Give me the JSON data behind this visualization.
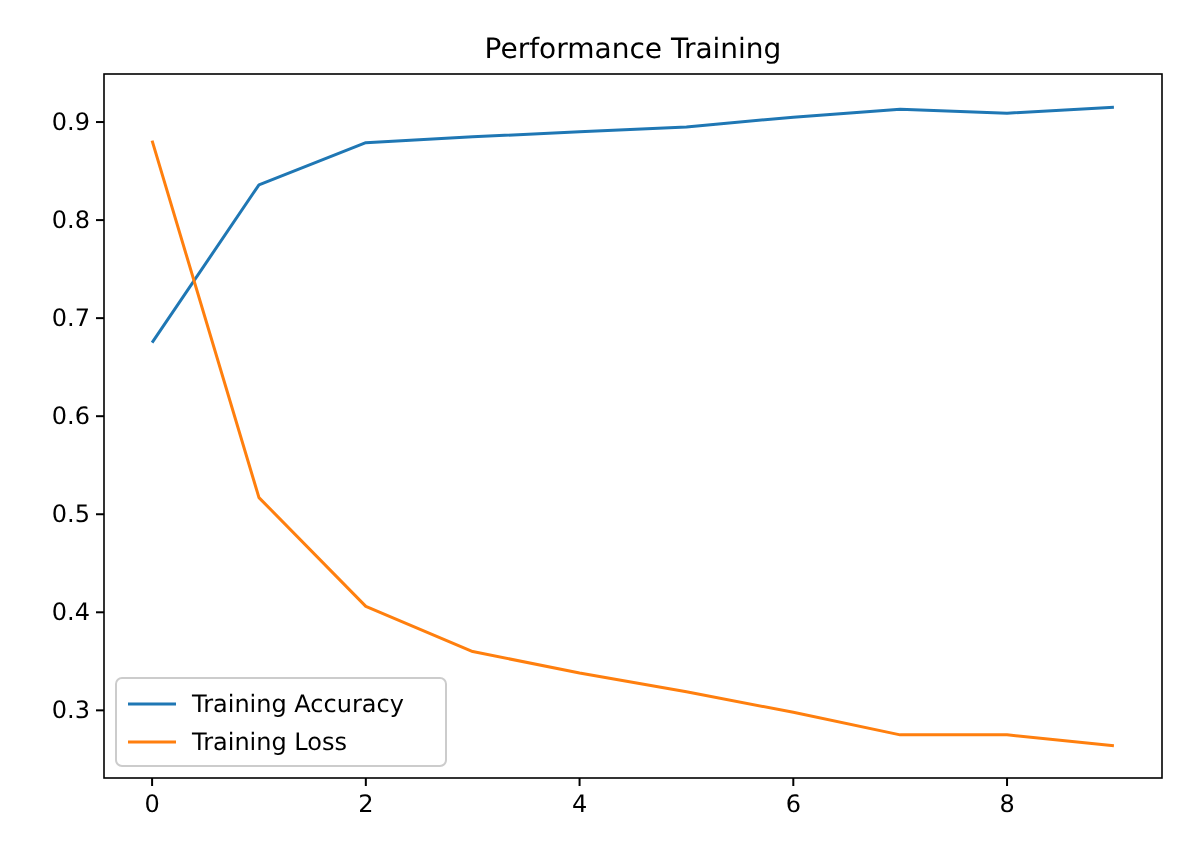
{
  "chart_data": {
    "type": "line",
    "title": "Performance Training",
    "x": [
      0,
      1,
      2,
      3,
      4,
      5,
      6,
      7,
      8,
      9
    ],
    "series": [
      {
        "name": "Training Accuracy",
        "color": "#1f77b4",
        "values": [
          0.675,
          0.836,
          0.879,
          0.885,
          0.89,
          0.895,
          0.905,
          0.913,
          0.909,
          0.915
        ]
      },
      {
        "name": "Training Loss",
        "color": "#ff7f0e",
        "values": [
          0.881,
          0.517,
          0.406,
          0.36,
          0.338,
          0.319,
          0.298,
          0.275,
          0.275,
          0.264
        ]
      }
    ],
    "xlim": [
      -0.45,
      9.45
    ],
    "ylim": [
      0.231,
      0.949
    ],
    "xticks": [
      0,
      2,
      4,
      6,
      8
    ],
    "yticks": [
      0.3,
      0.4,
      0.5,
      0.6,
      0.7,
      0.8,
      0.9
    ],
    "legend": "bottom left",
    "grid": false
  }
}
